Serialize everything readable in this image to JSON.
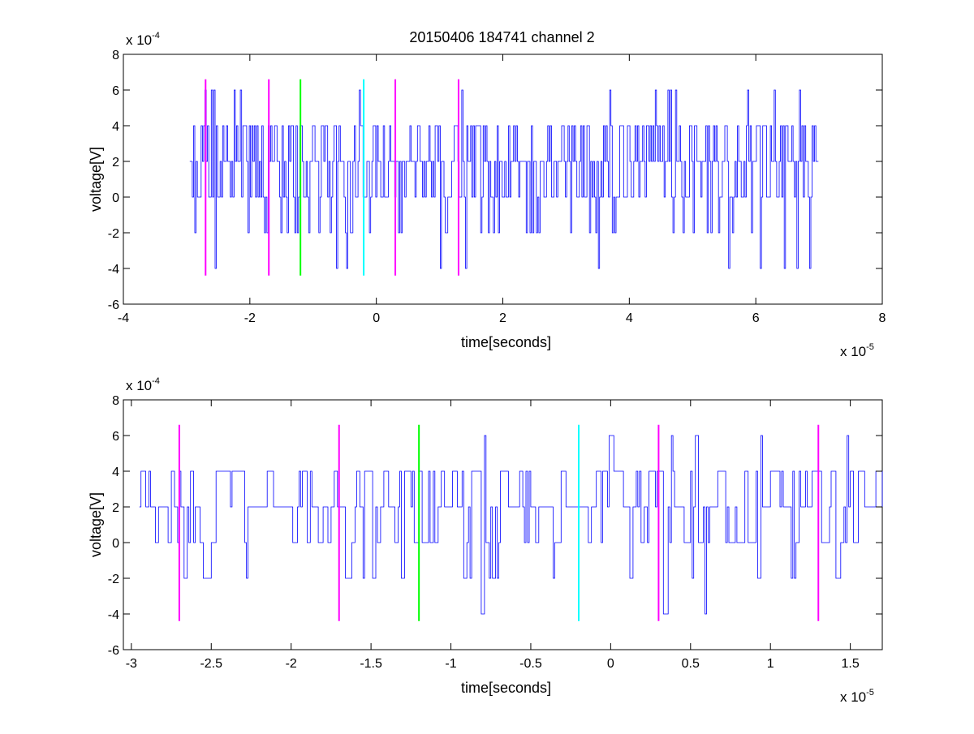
{
  "figure": {
    "title": "20150406 184741 channel 2",
    "background": "#ffffff"
  },
  "chart_data": [
    {
      "type": "line",
      "title": "20150406 184741 channel 2",
      "xlabel": "time[seconds]",
      "ylabel": "voltage[V]",
      "x_multiplier": {
        "base": "x 10",
        "exp": "-5"
      },
      "y_multiplier": {
        "base": "x 10",
        "exp": "-4"
      },
      "xlim": [
        -4,
        8
      ],
      "ylim": [
        -6,
        8
      ],
      "xticks": [
        -4,
        -2,
        0,
        2,
        4,
        6,
        8
      ],
      "xtick_labels": [
        "-4",
        "-2",
        "0",
        "2",
        "4",
        "6",
        "8"
      ],
      "yticks": [
        -6,
        -4,
        -2,
        0,
        2,
        4,
        6,
        8
      ],
      "ytick_labels": [
        "-6",
        "-4",
        "-2",
        "0",
        "2",
        "4",
        "6",
        "8"
      ],
      "grid": false,
      "signal": {
        "color": "#0000ff",
        "x_start": -2.95,
        "x_end": 7.0,
        "baseline": 2,
        "levels": [
          -4,
          -2,
          0,
          2,
          4,
          6
        ],
        "step": 0.02
      },
      "markers": [
        {
          "x": -2.7,
          "color": "#ff00ff",
          "ymin": -4.4,
          "ymax": 6.6
        },
        {
          "x": -1.7,
          "color": "#ff00ff",
          "ymin": -4.4,
          "ymax": 6.6
        },
        {
          "x": -1.2,
          "color": "#00ff00",
          "ymin": -4.4,
          "ymax": 6.6
        },
        {
          "x": -0.2,
          "color": "#00ffff",
          "ymin": -4.4,
          "ymax": 6.6
        },
        {
          "x": 0.3,
          "color": "#ff00ff",
          "ymin": -4.4,
          "ymax": 6.6
        },
        {
          "x": 1.3,
          "color": "#ff00ff",
          "ymin": -4.4,
          "ymax": 6.6
        }
      ]
    },
    {
      "type": "line",
      "xlabel": "time[seconds]",
      "ylabel": "voltage[V]",
      "x_multiplier": {
        "base": "x 10",
        "exp": "-5"
      },
      "y_multiplier": {
        "base": "x 10",
        "exp": "-4"
      },
      "xlim": [
        -3.05,
        1.7
      ],
      "ylim": [
        -6,
        8
      ],
      "xticks": [
        -3,
        -2.5,
        -2,
        -1.5,
        -1,
        -0.5,
        0,
        0.5,
        1,
        1.5
      ],
      "xtick_labels": [
        "-3",
        "-2.5",
        "-2",
        "-1.5",
        "-1",
        "-0.5",
        "0",
        "0.5",
        "1",
        "1.5"
      ],
      "yticks": [
        -6,
        -4,
        -2,
        0,
        2,
        4,
        6,
        8
      ],
      "ytick_labels": [
        "-6",
        "-4",
        "-2",
        "0",
        "2",
        "4",
        "6",
        "8"
      ],
      "grid": false,
      "signal": {
        "color": "#0000ff",
        "x_start": -2.95,
        "x_end": 1.7,
        "baseline": 2,
        "levels": [
          -4,
          -2,
          0,
          2,
          4,
          6
        ],
        "step": 0.01
      },
      "markers": [
        {
          "x": -2.7,
          "color": "#ff00ff",
          "ymin": -4.4,
          "ymax": 6.6
        },
        {
          "x": -1.7,
          "color": "#ff00ff",
          "ymin": -4.4,
          "ymax": 6.6
        },
        {
          "x": -1.2,
          "color": "#00ff00",
          "ymin": -4.4,
          "ymax": 6.6
        },
        {
          "x": -0.2,
          "color": "#00ffff",
          "ymin": -4.4,
          "ymax": 6.6
        },
        {
          "x": 0.3,
          "color": "#ff00ff",
          "ymin": -4.4,
          "ymax": 6.6
        },
        {
          "x": 1.3,
          "color": "#ff00ff",
          "ymin": -4.4,
          "ymax": 6.6
        }
      ]
    }
  ]
}
